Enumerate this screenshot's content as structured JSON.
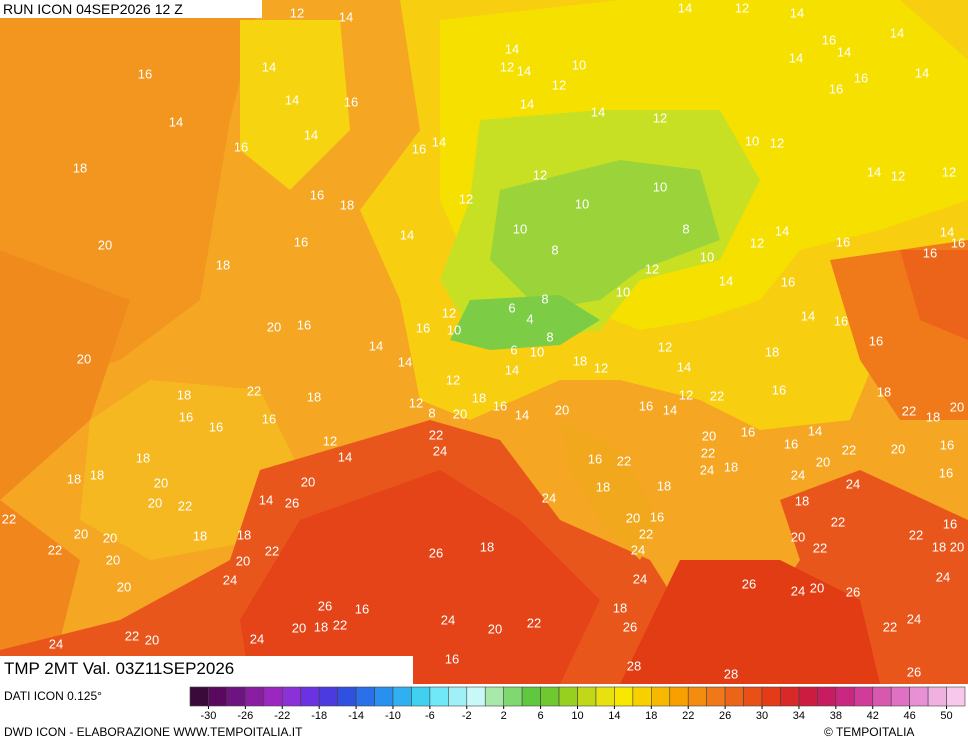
{
  "header": {
    "run": "RUN ICON 04SEP2026 12 Z"
  },
  "footer": {
    "field": "TMP 2MT Val. 03Z11SEP2026",
    "source": "DATI ICON 0.125°",
    "credit": "DWD ICON - ELABORAZIONE WWW.TEMPOITALIA.IT",
    "copyright": "© TEMPOITALIA"
  },
  "legend": {
    "ticks": [
      -30,
      -26,
      -22,
      -18,
      -14,
      -10,
      -6,
      -2,
      2,
      6,
      10,
      14,
      18,
      22,
      26,
      30,
      34,
      38,
      42,
      46,
      50
    ]
  },
  "map": {
    "labels": [
      12,
      14,
      16,
      14,
      14,
      16,
      14,
      14,
      16,
      16,
      14,
      18,
      16,
      18,
      12,
      14,
      12,
      14,
      10,
      12,
      14,
      14,
      12,
      14,
      12,
      14,
      16,
      14,
      14,
      14,
      14,
      16,
      16,
      10,
      12,
      12,
      10,
      10,
      14,
      12,
      12,
      20,
      16,
      18,
      14,
      10,
      8,
      8,
      12,
      10,
      12,
      14,
      16,
      16,
      14,
      16,
      14,
      16,
      12,
      16,
      10,
      6,
      8,
      4,
      10,
      16,
      20,
      20,
      14,
      6,
      10,
      8,
      14,
      18,
      12,
      12,
      14,
      16,
      16,
      18,
      14,
      12,
      14,
      22,
      18,
      18,
      12,
      8,
      20,
      18,
      16,
      14,
      20,
      16,
      14,
      12,
      22,
      16,
      18,
      22,
      18,
      20,
      16,
      16,
      16,
      12,
      14,
      22,
      24,
      20,
      16,
      16,
      14,
      22,
      20,
      16,
      18,
      18,
      18,
      20,
      16,
      22,
      22,
      24,
      18,
      20,
      16,
      20,
      14,
      26,
      20,
      22,
      24,
      18,
      18,
      24,
      24,
      18,
      22,
      18,
      18,
      20,
      20,
      20,
      16,
      22,
      22,
      16,
      22,
      18,
      20,
      22,
      20,
      20,
      22,
      26,
      18,
      24,
      20,
      22,
      24,
      24,
      20,
      24,
      26,
      24,
      20,
      26,
      18,
      26,
      16,
      24,
      22,
      20,
      18,
      20,
      22,
      26,
      24,
      22,
      24,
      22,
      20,
      24,
      16,
      28,
      28,
      26
    ]
  }
}
